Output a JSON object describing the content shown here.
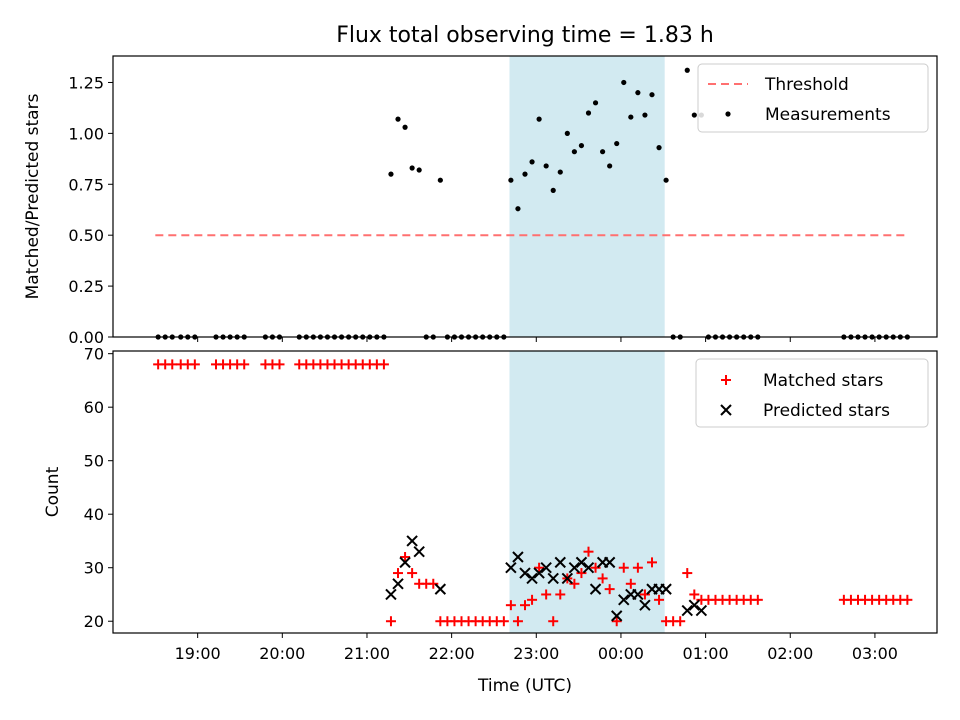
{
  "title": "Flux total observing time = 1.83 h",
  "colors": {
    "threshold": "#ff7070",
    "measurement": "#000000",
    "matched": "#ff0000",
    "predicted": "#000000",
    "span": "#add8e6"
  },
  "chart_data": [
    {
      "type": "scatter",
      "ylabel": "Matched/Predicted stars",
      "ylim": [
        0,
        1.38
      ],
      "yticks": [
        "0.00",
        "0.25",
        "0.50",
        "0.75",
        "1.00",
        "1.25"
      ],
      "ytick_values": [
        0,
        0.25,
        0.5,
        0.75,
        1.0,
        1.25
      ],
      "highlight_span": [
        "22:41",
        "00:31"
      ],
      "legend": {
        "placement": "top-right",
        "entries": [
          "Threshold",
          "Measurements"
        ]
      },
      "threshold": {
        "name": "Threshold",
        "value": 0.5,
        "x_range": [
          "18:30",
          "03:24"
        ]
      },
      "series": [
        {
          "name": "Measurements",
          "points": [
            [
              "18:32",
              0
            ],
            [
              "18:37",
              0
            ],
            [
              "18:42",
              0
            ],
            [
              "18:48",
              0
            ],
            [
              "18:53",
              0
            ],
            [
              "18:58",
              0
            ],
            [
              "19:13",
              0
            ],
            [
              "19:18",
              0
            ],
            [
              "19:23",
              0
            ],
            [
              "19:28",
              0
            ],
            [
              "19:33",
              0
            ],
            [
              "19:48",
              0
            ],
            [
              "19:53",
              0
            ],
            [
              "19:58",
              0
            ],
            [
              "20:12",
              0
            ],
            [
              "20:17",
              0
            ],
            [
              "20:22",
              0
            ],
            [
              "20:27",
              0
            ],
            [
              "20:32",
              0
            ],
            [
              "20:37",
              0
            ],
            [
              "20:42",
              0
            ],
            [
              "20:47",
              0
            ],
            [
              "20:52",
              0
            ],
            [
              "20:57",
              0
            ],
            [
              "21:02",
              0
            ],
            [
              "21:07",
              0
            ],
            [
              "21:12",
              0
            ],
            [
              "21:17",
              0.8
            ],
            [
              "21:22",
              1.07
            ],
            [
              "21:27",
              1.03
            ],
            [
              "21:32",
              0.83
            ],
            [
              "21:37",
              0.82
            ],
            [
              "21:42",
              0
            ],
            [
              "21:47",
              0
            ],
            [
              "21:52",
              0.77
            ],
            [
              "21:57",
              0
            ],
            [
              "22:02",
              0
            ],
            [
              "22:07",
              0
            ],
            [
              "22:12",
              0
            ],
            [
              "22:17",
              0
            ],
            [
              "22:22",
              0
            ],
            [
              "22:27",
              0
            ],
            [
              "22:32",
              0
            ],
            [
              "22:37",
              0
            ],
            [
              "22:42",
              0.77
            ],
            [
              "22:47",
              0.63
            ],
            [
              "22:52",
              0.8
            ],
            [
              "22:57",
              0.86
            ],
            [
              "23:02",
              1.07
            ],
            [
              "23:07",
              0.84
            ],
            [
              "23:12",
              0.72
            ],
            [
              "23:17",
              0.81
            ],
            [
              "23:22",
              1.0
            ],
            [
              "23:27",
              0.91
            ],
            [
              "23:32",
              0.94
            ],
            [
              "23:37",
              1.1
            ],
            [
              "23:42",
              1.15
            ],
            [
              "23:47",
              0.91
            ],
            [
              "23:52",
              0.84
            ],
            [
              "23:57",
              0.95
            ],
            [
              "00:02",
              1.25
            ],
            [
              "00:07",
              1.08
            ],
            [
              "00:12",
              1.2
            ],
            [
              "00:17",
              1.09
            ],
            [
              "00:22",
              1.19
            ],
            [
              "00:27",
              0.93
            ],
            [
              "00:32",
              0.77
            ],
            [
              "00:37",
              0
            ],
            [
              "00:42",
              0
            ],
            [
              "00:47",
              1.31
            ],
            [
              "00:52",
              1.09
            ],
            [
              "00:57",
              1.09
            ],
            [
              "01:02",
              0
            ],
            [
              "01:07",
              0
            ],
            [
              "01:12",
              0
            ],
            [
              "01:17",
              0
            ],
            [
              "01:22",
              0
            ],
            [
              "01:27",
              0
            ],
            [
              "01:32",
              0
            ],
            [
              "01:37",
              0
            ],
            [
              "02:38",
              0
            ],
            [
              "02:43",
              0
            ],
            [
              "02:48",
              0
            ],
            [
              "02:53",
              0
            ],
            [
              "02:58",
              0
            ],
            [
              "03:03",
              0
            ],
            [
              "03:08",
              0
            ],
            [
              "03:13",
              0
            ],
            [
              "03:18",
              0
            ],
            [
              "03:23",
              0
            ]
          ]
        }
      ]
    },
    {
      "type": "scatter",
      "xlabel": "Time (UTC)",
      "ylabel": "Count",
      "ylim": [
        17.8,
        70.5
      ],
      "xlim": [
        "18:00",
        "03:44"
      ],
      "xticks": [
        "19:00",
        "20:00",
        "21:00",
        "22:00",
        "23:00",
        "00:00",
        "01:00",
        "02:00",
        "03:00"
      ],
      "yticks": [
        "20",
        "30",
        "40",
        "50",
        "60",
        "70"
      ],
      "ytick_values": [
        20,
        30,
        40,
        50,
        60,
        70
      ],
      "highlight_span": [
        "22:41",
        "00:31"
      ],
      "legend": {
        "placement": "top-right",
        "entries": [
          "Matched stars",
          "Predicted stars"
        ]
      },
      "series": [
        {
          "name": "Matched stars",
          "points": [
            [
              "18:32",
              68
            ],
            [
              "18:37",
              68
            ],
            [
              "18:42",
              68
            ],
            [
              "18:48",
              68
            ],
            [
              "18:53",
              68
            ],
            [
              "18:58",
              68
            ],
            [
              "19:13",
              68
            ],
            [
              "19:18",
              68
            ],
            [
              "19:23",
              68
            ],
            [
              "19:28",
              68
            ],
            [
              "19:33",
              68
            ],
            [
              "19:48",
              68
            ],
            [
              "19:53",
              68
            ],
            [
              "19:58",
              68
            ],
            [
              "20:12",
              68
            ],
            [
              "20:17",
              68
            ],
            [
              "20:22",
              68
            ],
            [
              "20:27",
              68
            ],
            [
              "20:32",
              68
            ],
            [
              "20:37",
              68
            ],
            [
              "20:42",
              68
            ],
            [
              "20:47",
              68
            ],
            [
              "20:52",
              68
            ],
            [
              "20:57",
              68
            ],
            [
              "21:02",
              68
            ],
            [
              "21:07",
              68
            ],
            [
              "21:12",
              68
            ],
            [
              "21:17",
              20
            ],
            [
              "21:22",
              29
            ],
            [
              "21:27",
              32
            ],
            [
              "21:32",
              29
            ],
            [
              "21:37",
              27
            ],
            [
              "21:42",
              27
            ],
            [
              "21:47",
              27
            ],
            [
              "21:52",
              20
            ],
            [
              "21:57",
              20
            ],
            [
              "22:02",
              20
            ],
            [
              "22:07",
              20
            ],
            [
              "22:12",
              20
            ],
            [
              "22:17",
              20
            ],
            [
              "22:22",
              20
            ],
            [
              "22:27",
              20
            ],
            [
              "22:32",
              20
            ],
            [
              "22:37",
              20
            ],
            [
              "22:42",
              23
            ],
            [
              "22:47",
              20
            ],
            [
              "22:52",
              23
            ],
            [
              "22:57",
              24
            ],
            [
              "23:02",
              30
            ],
            [
              "23:07",
              25
            ],
            [
              "23:12",
              20
            ],
            [
              "23:17",
              25
            ],
            [
              "23:22",
              28
            ],
            [
              "23:27",
              27
            ],
            [
              "23:32",
              29
            ],
            [
              "23:37",
              33
            ],
            [
              "23:42",
              30
            ],
            [
              "23:47",
              28
            ],
            [
              "23:52",
              26
            ],
            [
              "23:57",
              20
            ],
            [
              "00:02",
              30
            ],
            [
              "00:07",
              27
            ],
            [
              "00:12",
              30
            ],
            [
              "00:17",
              25
            ],
            [
              "00:22",
              31
            ],
            [
              "00:27",
              24
            ],
            [
              "00:32",
              20
            ],
            [
              "00:37",
              20
            ],
            [
              "00:42",
              20
            ],
            [
              "00:47",
              29
            ],
            [
              "00:52",
              25
            ],
            [
              "00:57",
              24
            ],
            [
              "01:02",
              24
            ],
            [
              "01:07",
              24
            ],
            [
              "01:12",
              24
            ],
            [
              "01:17",
              24
            ],
            [
              "01:22",
              24
            ],
            [
              "01:27",
              24
            ],
            [
              "01:32",
              24
            ],
            [
              "01:37",
              24
            ],
            [
              "02:38",
              24
            ],
            [
              "02:43",
              24
            ],
            [
              "02:48",
              24
            ],
            [
              "02:53",
              24
            ],
            [
              "02:58",
              24
            ],
            [
              "03:03",
              24
            ],
            [
              "03:08",
              24
            ],
            [
              "03:13",
              24
            ],
            [
              "03:18",
              24
            ],
            [
              "03:23",
              24
            ]
          ]
        },
        {
          "name": "Predicted stars",
          "points": [
            [
              "21:17",
              25
            ],
            [
              "21:22",
              27
            ],
            [
              "21:27",
              31
            ],
            [
              "21:32",
              35
            ],
            [
              "21:37",
              33
            ],
            [
              "21:52",
              26
            ],
            [
              "22:42",
              30
            ],
            [
              "22:47",
              32
            ],
            [
              "22:52",
              29
            ],
            [
              "22:57",
              28
            ],
            [
              "23:02",
              29
            ],
            [
              "23:07",
              30
            ],
            [
              "23:12",
              28
            ],
            [
              "23:17",
              31
            ],
            [
              "23:22",
              28
            ],
            [
              "23:27",
              30
            ],
            [
              "23:32",
              31
            ],
            [
              "23:37",
              30
            ],
            [
              "23:42",
              26
            ],
            [
              "23:47",
              31
            ],
            [
              "23:52",
              31
            ],
            [
              "23:57",
              21
            ],
            [
              "00:02",
              24
            ],
            [
              "00:07",
              25
            ],
            [
              "00:12",
              25
            ],
            [
              "00:17",
              23
            ],
            [
              "00:22",
              26
            ],
            [
              "00:27",
              26
            ],
            [
              "00:32",
              26
            ],
            [
              "00:47",
              22
            ],
            [
              "00:52",
              23
            ],
            [
              "00:57",
              22
            ]
          ]
        }
      ]
    }
  ]
}
